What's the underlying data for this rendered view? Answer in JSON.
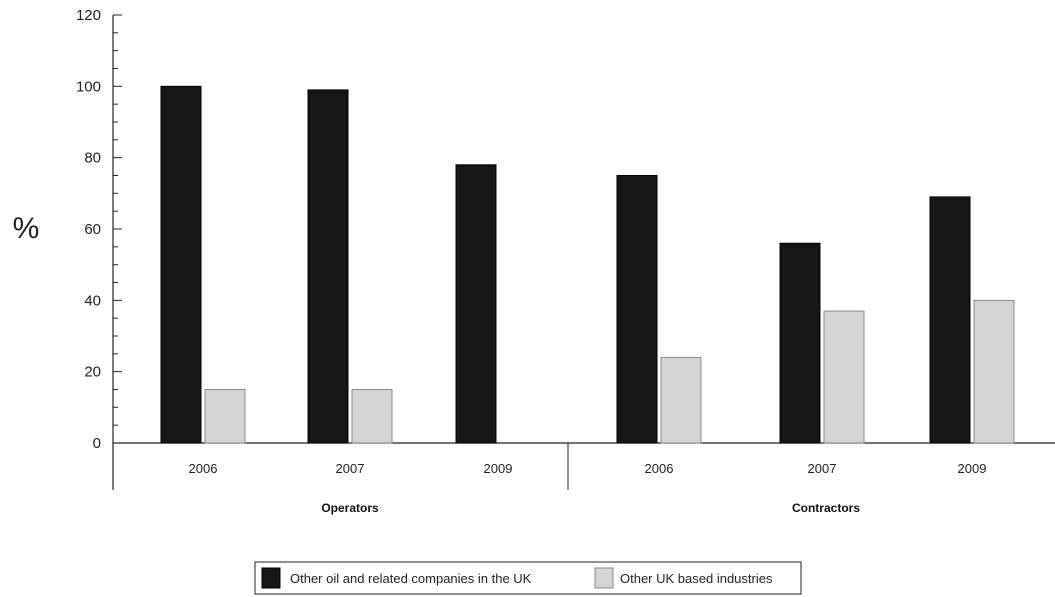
{
  "chart_data": {
    "type": "bar",
    "title": "",
    "xlabel": "",
    "ylabel": "%",
    "ylim": [
      0,
      120
    ],
    "yticks": [
      "0",
      "20",
      "40",
      "60",
      "80",
      "100",
      "120"
    ],
    "groups": [
      {
        "name": "Operators",
        "categories": [
          "2006",
          "2007",
          "2009"
        ]
      },
      {
        "name": "Contractors",
        "categories": [
          "2006",
          "2007",
          "2009"
        ]
      }
    ],
    "categories": [
      "2006",
      "2007",
      "2009",
      "2006",
      "2007",
      "2009"
    ],
    "series": [
      {
        "name": "Other oil and related companies in the UK",
        "color": "#161616",
        "values": [
          100,
          99,
          78,
          75,
          56,
          69
        ]
      },
      {
        "name": "Other UK based industries",
        "color": "#d4d4d4",
        "values": [
          15,
          15,
          null,
          24,
          37,
          40
        ]
      }
    ],
    "legend_position": "bottom-center",
    "grid": false
  }
}
